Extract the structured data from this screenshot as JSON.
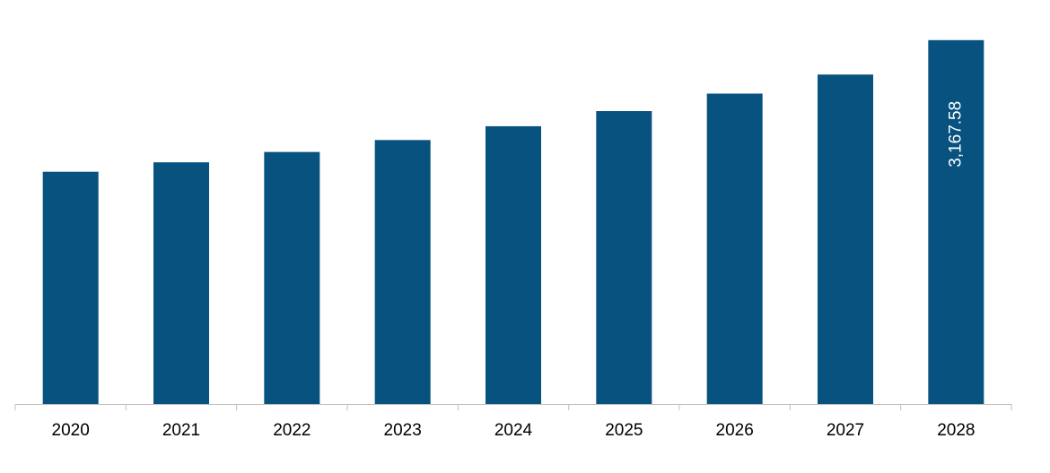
{
  "chart_data": {
    "type": "bar",
    "categories": [
      "2020",
      "2021",
      "2022",
      "2023",
      "2024",
      "2025",
      "2026",
      "2027",
      "2028"
    ],
    "values": [
      2022,
      2104,
      2194,
      2298,
      2418,
      2550,
      2702,
      2868,
      3167.58
    ],
    "data_labels": [
      "",
      "",
      "",
      "",
      "",
      "",
      "",
      "",
      "3,167.58"
    ],
    "title": "",
    "xlabel": "",
    "ylabel": "",
    "ylim": [
      0,
      3400
    ],
    "grid": false,
    "legend": "none",
    "bar_color": "#07527f",
    "axis_color": "#bfbfbf"
  }
}
